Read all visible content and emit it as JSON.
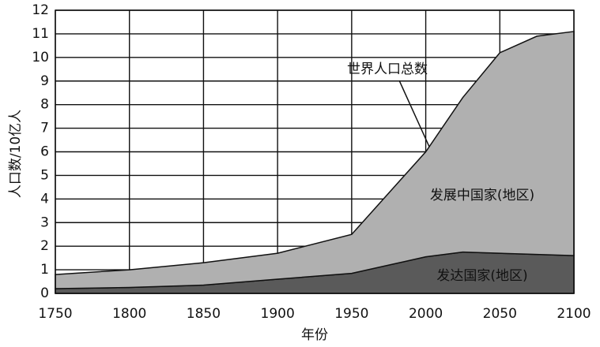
{
  "chart_data": {
    "type": "stacked_area",
    "x": [
      1750,
      1800,
      1850,
      1900,
      1950,
      2000,
      2025,
      2050,
      2075,
      2100
    ],
    "series": [
      {
        "name": "发达国家(地区)",
        "color": "#5a5a5a",
        "values": [
          0.2,
          0.25,
          0.35,
          0.6,
          0.85,
          1.55,
          1.75,
          1.7,
          1.65,
          1.6
        ]
      },
      {
        "name": "发展中国家(地区)",
        "color": "#b0b0b0",
        "values": [
          0.6,
          0.75,
          0.95,
          1.1,
          1.65,
          4.45,
          6.55,
          8.5,
          9.25,
          9.5
        ]
      }
    ],
    "annotation": "世界人口总数",
    "x_label": "年份",
    "y_label": "人口数/10亿人",
    "xlim": [
      1750,
      2100
    ],
    "ylim": [
      0,
      12
    ],
    "xticks": [
      1750,
      1800,
      1850,
      1900,
      1950,
      2000,
      2050,
      2100
    ],
    "yticks": [
      0,
      1,
      2,
      3,
      4,
      5,
      6,
      7,
      8,
      9,
      10,
      11,
      12
    ],
    "grid": true
  }
}
